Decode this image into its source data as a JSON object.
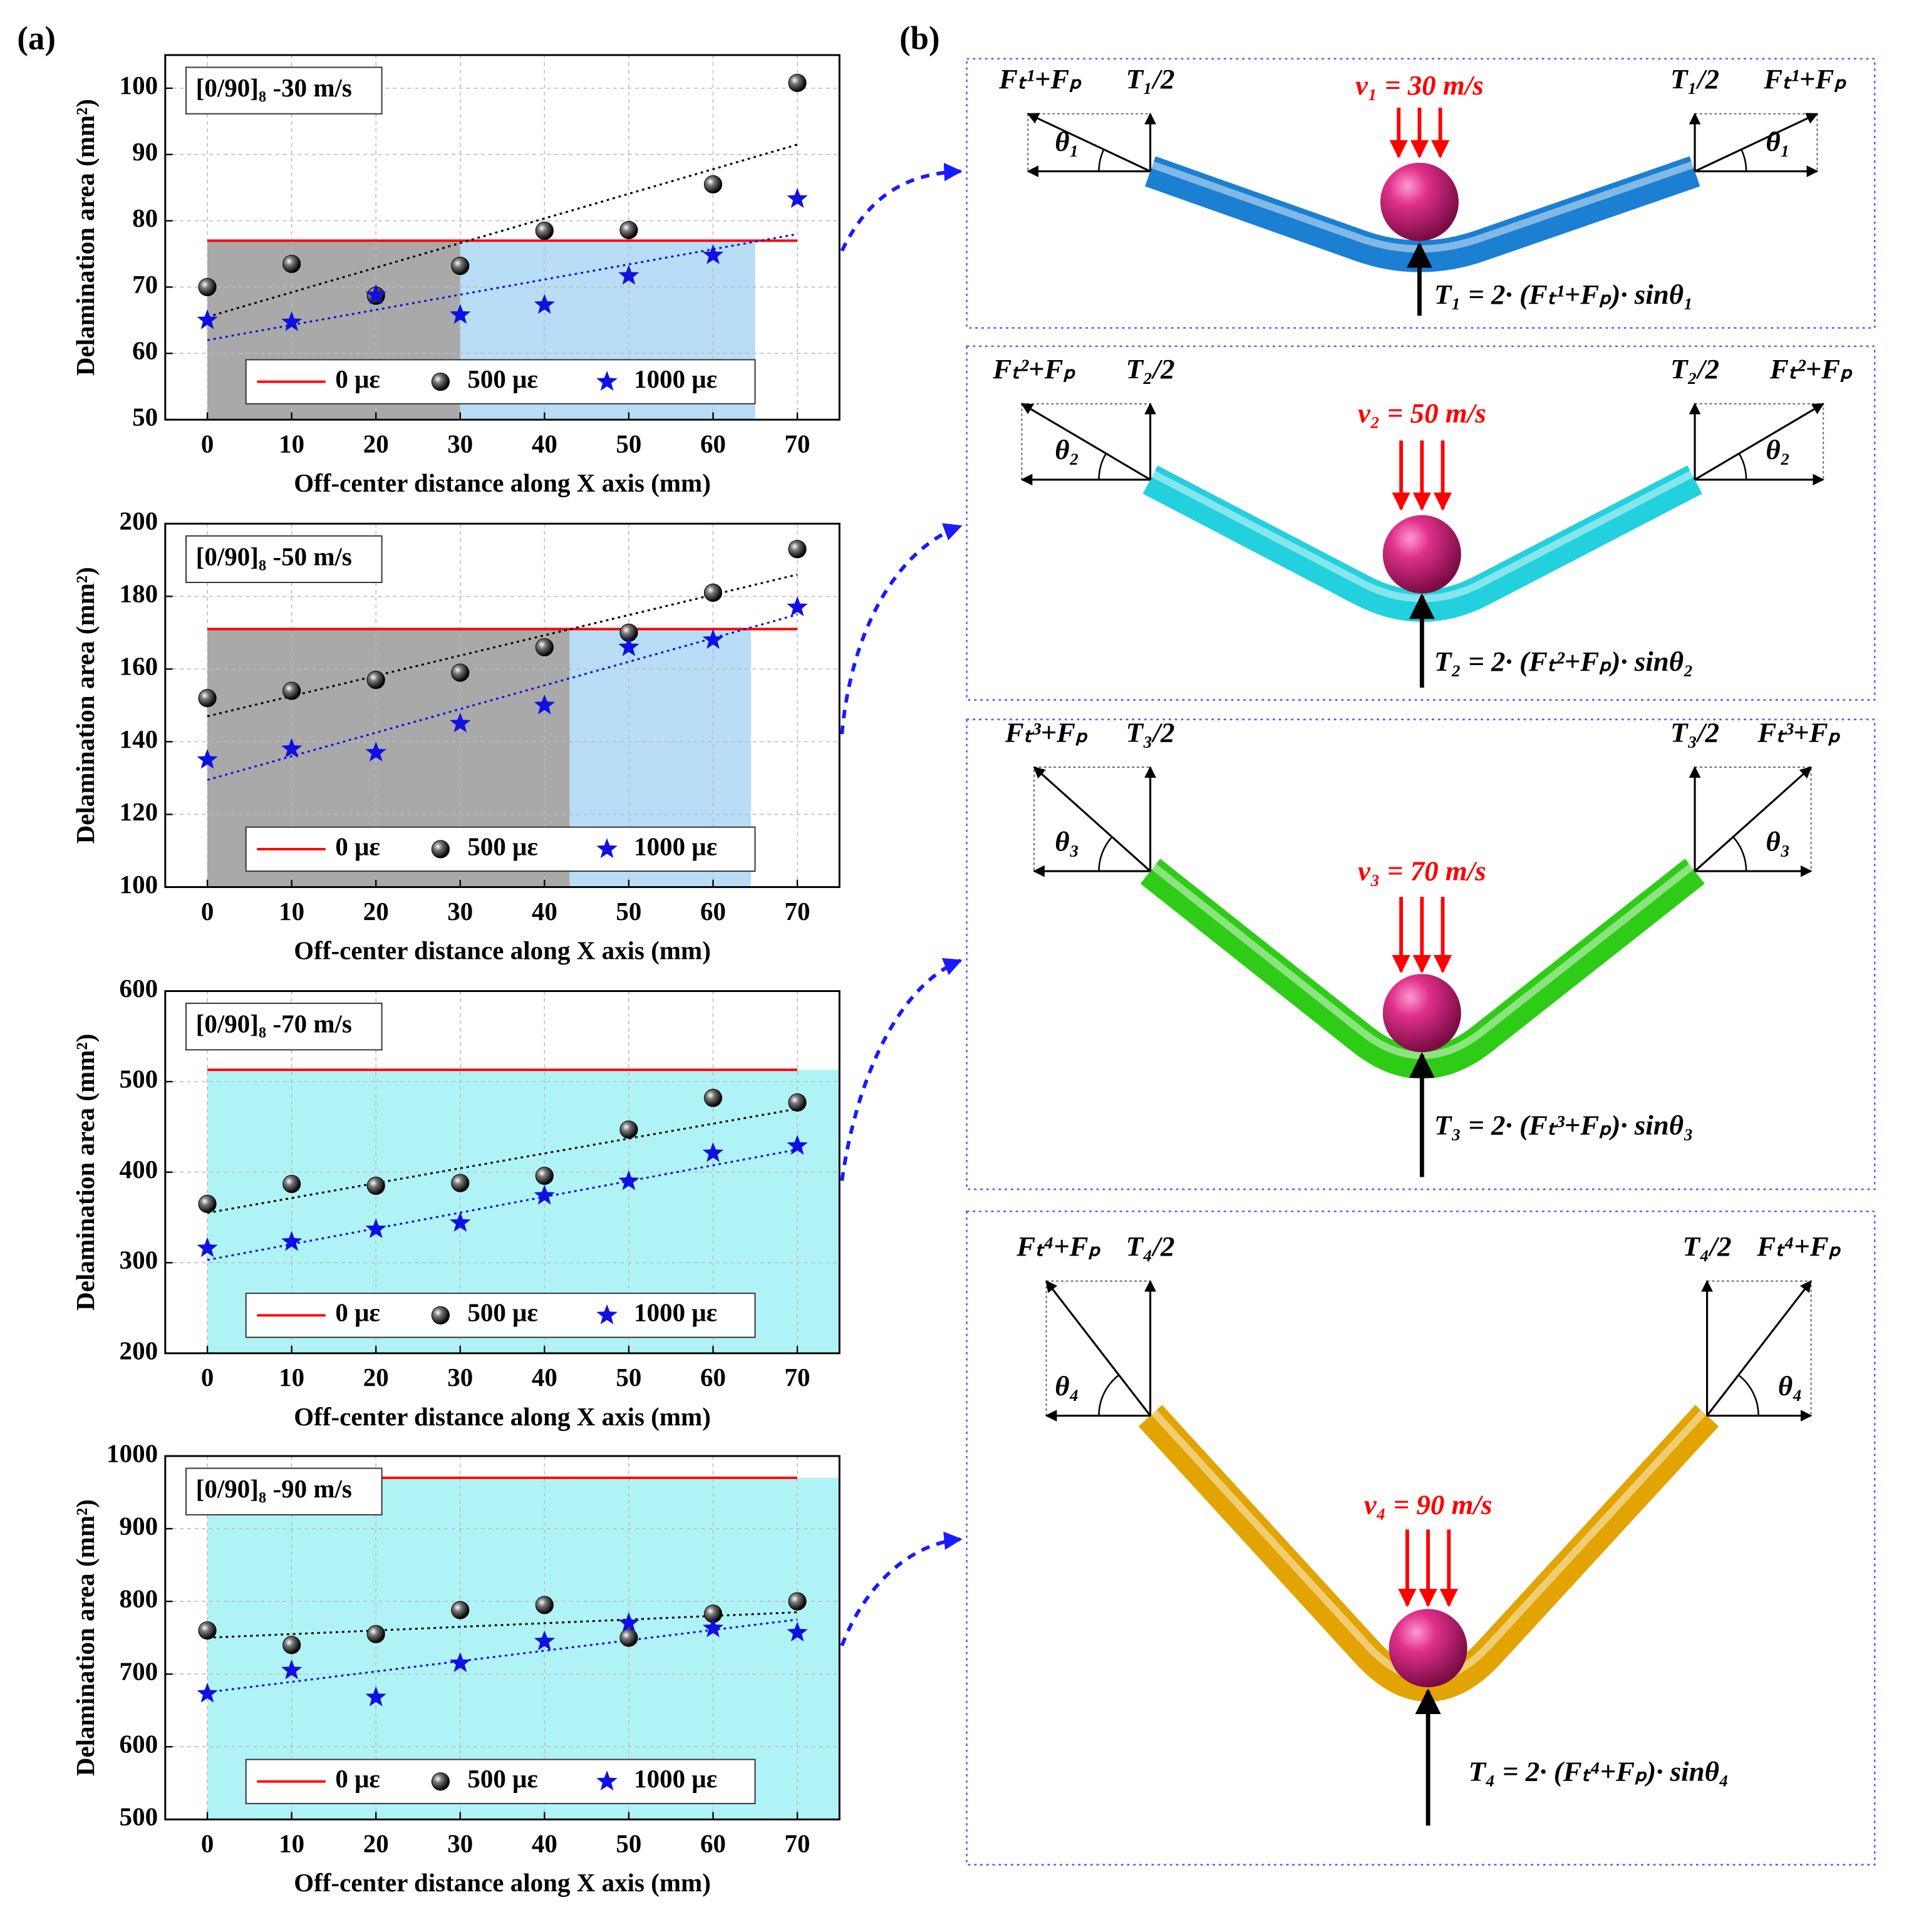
{
  "panel_labels": [
    "(a)",
    "(b)"
  ],
  "chart_data": [
    {
      "type": "scatter",
      "title": "[0/90]₈ -30 m/s",
      "x_label": "Off-center distance along X axis (mm)",
      "y_label": "Delamination area (mm²)",
      "x": [
        0,
        10,
        20,
        30,
        40,
        50,
        60,
        70
      ],
      "xlim": [
        -5,
        75
      ],
      "xticks": [
        0,
        10,
        20,
        30,
        40,
        50,
        60,
        70
      ],
      "ylim": [
        50,
        105
      ],
      "yticks": [
        50,
        60,
        70,
        80,
        90,
        100
      ],
      "grid": true,
      "legend": "lower center",
      "regions": [
        {
          "x": [
            0,
            30
          ],
          "color": "#a9a9a9"
        },
        {
          "x": [
            30,
            65
          ],
          "color": "#b9ddf6"
        }
      ],
      "series": [
        {
          "name": "0 με",
          "color": "#ff0000",
          "mode": "line",
          "values": [
            77,
            77,
            77,
            77,
            77,
            77,
            77,
            77
          ]
        },
        {
          "name": "500 με",
          "color": "#000000",
          "mode": "scatter",
          "marker": "sphere",
          "values": [
            70,
            73.5,
            68.7,
            73.2,
            78.5,
            78.6,
            85.5,
            100.8
          ],
          "fit": {
            "x": [
              0,
              70
            ],
            "values": [
              65.5,
              91.5
            ]
          }
        },
        {
          "name": "1000 με",
          "color": "#1010e0",
          "mode": "scatter",
          "marker": "star",
          "values": [
            65,
            64.7,
            68.8,
            65.8,
            67.3,
            71.7,
            74.8,
            83.3
          ],
          "fit": {
            "x": [
              0,
              70
            ],
            "values": [
              62,
              78
            ]
          }
        }
      ]
    },
    {
      "type": "scatter",
      "title": "[0/90]₈ -50 m/s",
      "x_label": "Off-center distance along X axis (mm)",
      "y_label": "Delamination area (mm²)",
      "x": [
        0,
        10,
        20,
        30,
        40,
        50,
        60,
        70
      ],
      "xlim": [
        -5,
        75
      ],
      "xticks": [
        0,
        10,
        20,
        30,
        40,
        50,
        60,
        70
      ],
      "ylim": [
        100,
        200
      ],
      "yticks": [
        100,
        120,
        140,
        160,
        180,
        200
      ],
      "grid": true,
      "legend": "lower center",
      "regions": [
        {
          "x": [
            0,
            43
          ],
          "color": "#a9a9a9"
        },
        {
          "x": [
            43,
            64.5
          ],
          "color": "#b9ddf6"
        }
      ],
      "series": [
        {
          "name": "0 με",
          "color": "#ff0000",
          "mode": "line",
          "values": [
            171,
            171,
            171,
            171,
            171,
            171,
            171,
            171
          ]
        },
        {
          "name": "500 με",
          "color": "#000000",
          "mode": "scatter",
          "marker": "sphere",
          "values": [
            152,
            154,
            157,
            159,
            166,
            170,
            181,
            193
          ],
          "fit": {
            "x": [
              0,
              70
            ],
            "values": [
              147,
              186
            ]
          }
        },
        {
          "name": "1000 με",
          "color": "#1010e0",
          "mode": "scatter",
          "marker": "star",
          "values": [
            135,
            138,
            137,
            145,
            150,
            166,
            168,
            177
          ],
          "fit": {
            "x": [
              0,
              70
            ],
            "values": [
              129.5,
              175
            ]
          }
        }
      ]
    },
    {
      "type": "scatter",
      "title": "[0/90]₈ -70 m/s",
      "x_label": "Off-center distance along X axis (mm)",
      "y_label": "Delamination area (mm²)",
      "x": [
        0,
        10,
        20,
        30,
        40,
        50,
        60,
        70
      ],
      "xlim": [
        -5,
        75
      ],
      "xticks": [
        0,
        10,
        20,
        30,
        40,
        50,
        60,
        70
      ],
      "ylim": [
        200,
        600
      ],
      "yticks": [
        200,
        300,
        400,
        500,
        600
      ],
      "grid": true,
      "legend": "lower center",
      "regions": [
        {
          "x": [
            0,
            75
          ],
          "color": "#b0f3f7"
        }
      ],
      "series": [
        {
          "name": "0 με",
          "color": "#ff0000",
          "mode": "line",
          "values": [
            513,
            513,
            513,
            513,
            513,
            513,
            513,
            513
          ]
        },
        {
          "name": "500 με",
          "color": "#000000",
          "mode": "scatter",
          "marker": "sphere",
          "values": [
            365,
            387,
            385,
            388,
            396,
            447,
            482,
            477
          ],
          "fit": {
            "x": [
              0,
              70
            ],
            "values": [
              355,
              470
            ]
          }
        },
        {
          "name": "1000 με",
          "color": "#1010e0",
          "mode": "scatter",
          "marker": "star",
          "values": [
            316,
            323,
            337,
            344,
            374,
            390,
            421,
            429
          ],
          "fit": {
            "x": [
              0,
              70
            ],
            "values": [
              303,
              425
            ]
          }
        }
      ]
    },
    {
      "type": "scatter",
      "title": "[0/90]₈ -90 m/s",
      "x_label": "Off-center distance along X axis (mm)",
      "y_label": "Delamination area (mm²)",
      "x": [
        0,
        10,
        20,
        30,
        40,
        50,
        60,
        70
      ],
      "xlim": [
        -5,
        75
      ],
      "xticks": [
        0,
        10,
        20,
        30,
        40,
        50,
        60,
        70
      ],
      "ylim": [
        500,
        1000
      ],
      "yticks": [
        500,
        600,
        700,
        800,
        900,
        1000
      ],
      "grid": true,
      "legend": "lower center",
      "regions": [
        {
          "x": [
            0,
            75
          ],
          "color": "#b0f3f7"
        }
      ],
      "series": [
        {
          "name": "0 με",
          "color": "#ff0000",
          "mode": "line",
          "values": [
            970,
            970,
            970,
            970,
            970,
            970,
            970,
            970
          ]
        },
        {
          "name": "500 με",
          "color": "#000000",
          "mode": "scatter",
          "marker": "sphere",
          "values": [
            760,
            740,
            755,
            788,
            795,
            750,
            783,
            800
          ],
          "fit": {
            "x": [
              0,
              70
            ],
            "values": [
              750,
              785
            ]
          }
        },
        {
          "name": "1000 με",
          "color": "#1010e0",
          "mode": "scatter",
          "marker": "star",
          "values": [
            673,
            705,
            668,
            715,
            745,
            770,
            763,
            757
          ],
          "fit": {
            "x": [
              0,
              70
            ],
            "values": [
              675,
              775
            ]
          }
        }
      ]
    }
  ],
  "diagram": {
    "panels": [
      {
        "force": "Fₜ¹+Fₚ",
        "tension": "T₁/2",
        "angle": "θ₁",
        "velocity": "v₁ = 30 m/s",
        "equation": "T₁ = 2· (Fₜ¹+Fₚ)· sinθ₁",
        "tube_color": "#1b7fd2"
      },
      {
        "force": "Fₜ²+Fₚ",
        "tension": "T₂/2",
        "angle": "θ₂",
        "velocity": "v₂ = 50 m/s",
        "equation": "T₂ = 2· (Fₜ²+Fₚ)· sinθ₂",
        "tube_color": "#22d0de"
      },
      {
        "force": "Fₜ³+Fₚ",
        "tension": "T₃/2",
        "angle": "θ₃",
        "velocity": "v₃ = 70 m/s",
        "equation": "T₃ = 2· (Fₜ³+Fₚ)· sinθ₃",
        "tube_color": "#2fcc17"
      },
      {
        "force": "Fₜ⁴+Fₚ",
        "tension": "T₄/2",
        "angle": "θ₄",
        "velocity": "v₄ = 90 m/s",
        "equation": "T₄ = 2· (Fₜ⁴+Fₚ)· sinθ₄",
        "tube_color": "#e3a300"
      }
    ]
  }
}
